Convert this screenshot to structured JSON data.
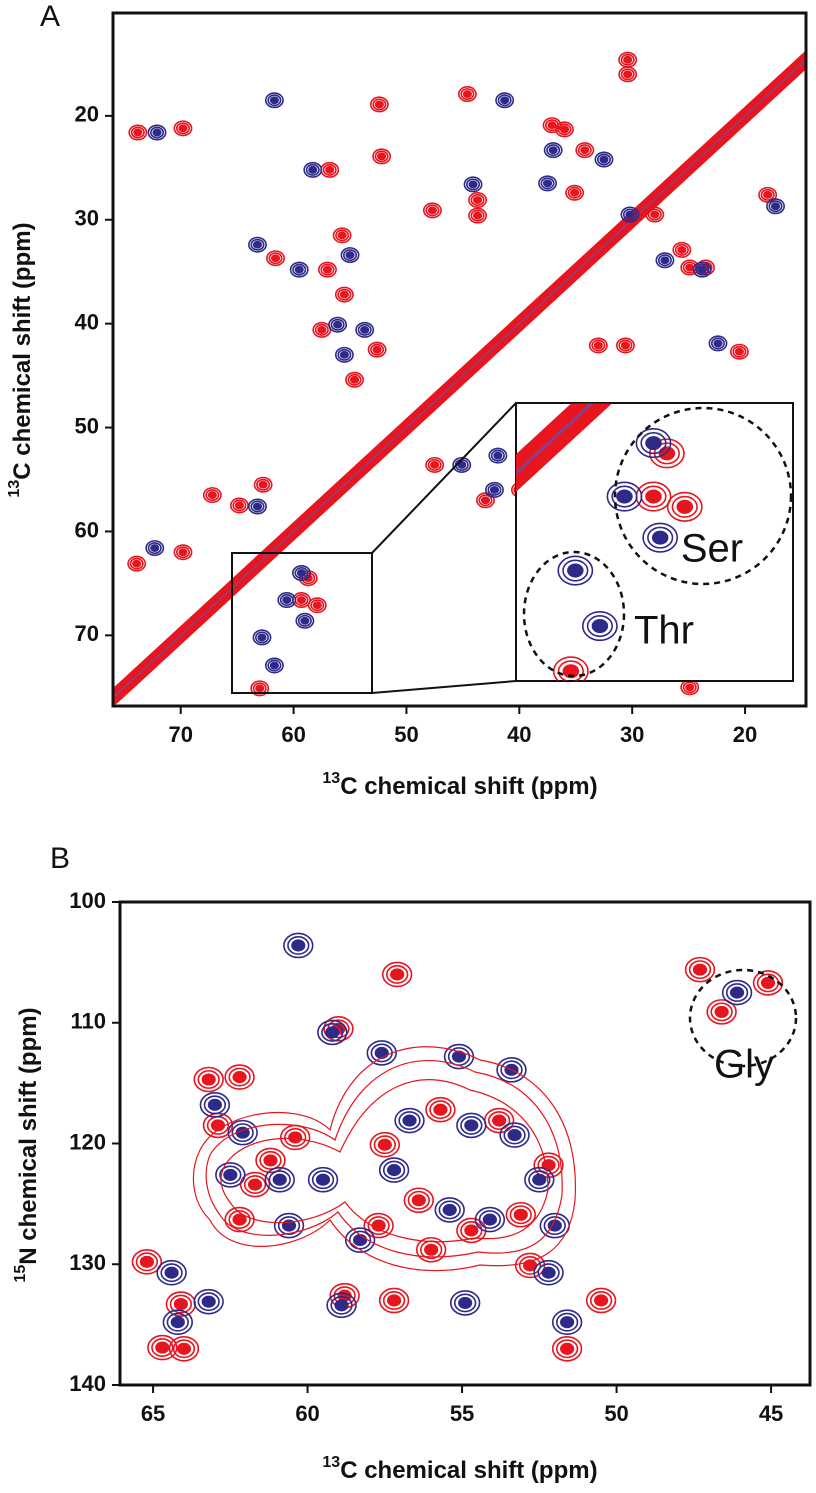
{
  "chart_data": [
    {
      "type": "scatter",
      "panel": "A",
      "xlabel": {
        "sup": "13",
        "text": "C chemical shift (ppm)"
      },
      "ylabel": {
        "sup": "13",
        "text": "C chemical shift (ppm)"
      },
      "xlim": [
        76.0,
        14.6
      ],
      "ylim": [
        76.8,
        10.1
      ],
      "xticks": [
        70,
        60,
        50,
        40,
        30,
        20
      ],
      "yticks": [
        20,
        30,
        40,
        50,
        60,
        70
      ],
      "annotations": [
        "Ser",
        "Thr"
      ],
      "series": [
        {
          "color": "#e8141e",
          "style": "line",
          "x": [
            76,
            13
          ],
          "values": [
            76,
            13
          ]
        },
        {
          "color": "#e8141e",
          "x": [
            73.8,
            69.8,
            56.8,
            61.6,
            57,
            55.7,
            55.5,
            57.5,
            52.6,
            54.6,
            52.4,
            52.2,
            44.6,
            43.7,
            43.7,
            47.7,
            37.1,
            36,
            34.2,
            35.1,
            28,
            24.9,
            23.5,
            25.6,
            18,
            30.4,
            30.4,
            33,
            30.6,
            20.5,
            39.9,
            47.5,
            43,
            64.8,
            62.7,
            67.2,
            69.8,
            73.9,
            24.9,
            58.7,
            59.3,
            57.9,
            63.0
          ],
          "values": [
            21.6,
            21.2,
            25.2,
            33.7,
            34.8,
            31.5,
            37.2,
            40.6,
            42.5,
            45.4,
            18.9,
            23.9,
            17.9,
            28.1,
            29.6,
            29.1,
            20.9,
            21.3,
            23.3,
            27.4,
            29.5,
            34.6,
            34.6,
            32.9,
            27.6,
            16.0,
            14.6,
            42.1,
            42.1,
            42.7,
            56.0,
            53.6,
            57.0,
            57.5,
            55.5,
            56.5,
            62.0,
            63.1,
            75.0,
            64.5,
            66.6,
            67.1,
            75.1
          ]
        },
        {
          "color": "#2e2a8a",
          "x": [
            72.1,
            58.3,
            63.2,
            59.5,
            55,
            56.1,
            53.7,
            55.5,
            61.7,
            41.3,
            44.1,
            37.5,
            37,
            32.5,
            30.2,
            27.1,
            23.8,
            17.3,
            22.4,
            45.1,
            41.9,
            42.2,
            63.2,
            72.3,
            59.3,
            60.6,
            62.8,
            61.7,
            59.0
          ],
          "values": [
            21.6,
            25.2,
            32.4,
            34.8,
            33.4,
            40.1,
            40.6,
            43.0,
            18.5,
            18.5,
            26.6,
            26.5,
            23.3,
            24.2,
            29.5,
            33.9,
            34.8,
            28.7,
            41.9,
            53.6,
            52.7,
            56.0,
            57.6,
            61.6,
            64.0,
            66.6,
            70.2,
            72.9,
            68.6
          ]
        }
      ]
    },
    {
      "type": "scatter",
      "panel": "B",
      "xlabel": {
        "sup": "13",
        "text": "C chemical shift (ppm)"
      },
      "ylabel": {
        "sup": "15",
        "text": "N chemical shift (ppm)"
      },
      "xlim": [
        66.07,
        43.74
      ],
      "ylim": [
        140,
        100
      ],
      "xticks": [
        65,
        60,
        55,
        50,
        45
      ],
      "yticks": [
        100,
        110,
        120,
        130,
        140
      ],
      "annotations": [
        "Gly"
      ],
      "series": [
        {
          "color": "#e8141e",
          "x": [
            57.1,
            59.0,
            63.2,
            62.2,
            62.9,
            60.4,
            61.2,
            61.7,
            62.2,
            57.5,
            55.7,
            53.8,
            52.2,
            56.4,
            54.7,
            53.1,
            57.7,
            56.0,
            57.2,
            58.8,
            52.8,
            64.1,
            64.0,
            64.7,
            65.2,
            51.6,
            50.5,
            47.3,
            45.1,
            46.6
          ],
          "values": [
            106.0,
            110.5,
            114.7,
            114.5,
            118.5,
            119.5,
            121.4,
            123.4,
            126.3,
            120.1,
            117.2,
            118.1,
            121.8,
            124.7,
            127.2,
            125.9,
            126.8,
            128.8,
            133.0,
            132.6,
            130.1,
            133.3,
            137.0,
            136.9,
            129.8,
            137.0,
            133.0,
            105.6,
            106.7,
            109.1
          ]
        },
        {
          "color": "#2e2a8a",
          "x": [
            60.3,
            59.2,
            55.1,
            53.4,
            57.6,
            63.0,
            62.1,
            62.5,
            60.9,
            60.6,
            59.5,
            57.2,
            56.7,
            54.7,
            53.3,
            52.5,
            55.4,
            54.1,
            52.0,
            58.3,
            54.9,
            58.9,
            52.2,
            63.2,
            64.4,
            64.2,
            51.6,
            46.1
          ],
          "values": [
            103.6,
            110.8,
            112.8,
            113.9,
            112.5,
            116.8,
            119.1,
            122.6,
            123.0,
            126.8,
            123.0,
            122.2,
            118.1,
            118.5,
            119.3,
            123.0,
            125.5,
            126.3,
            126.8,
            128.0,
            133.2,
            133.4,
            130.7,
            133.1,
            130.7,
            134.8,
            134.8,
            107.5
          ]
        }
      ]
    }
  ]
}
